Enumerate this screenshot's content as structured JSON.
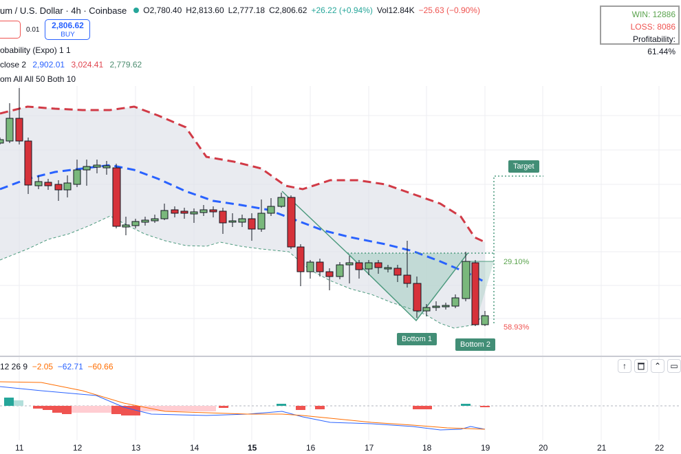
{
  "header": {
    "symbol": "um / U.S. Dollar · 4h · Coinbase",
    "open": "O2,780.40",
    "high": "H2,813.60",
    "low": "L2,777.18",
    "close": "C2,806.62",
    "change": "+26.22 (+0.94%)",
    "volume": "Vol12.84K",
    "vol_change": "−25.63 (−0.90%)"
  },
  "trade": {
    "spread": "0.01",
    "buy_price": "2,806.62",
    "buy_label": "BUY"
  },
  "indicators": {
    "line1": "obability (Expo) 1 1",
    "line2_name": "close 2",
    "line2_v1": "2,902.01",
    "line2_v2": "3,024.41",
    "line2_v3": "2,779.62",
    "line3": "om All All 50 Both 10"
  },
  "stats": {
    "win": "WIN: 12886",
    "loss": "LOSS: 8086",
    "profitability": "Profitability: 61.44%"
  },
  "annotations": {
    "target": "Target",
    "bottom1": "Bottom 1",
    "bottom2": "Bottom 2",
    "pct_top": "29.10%",
    "pct_bottom": "58.93%"
  },
  "macd": {
    "params": "12 26 9",
    "hist": "−2.05",
    "macd": "−62.71",
    "signal": "−60.66"
  },
  "toolbar": {
    "up_icon": "arrow-up-icon",
    "delete_icon": "trash-icon",
    "collapse_icon": "collapse-icon",
    "maximize_icon": "maximize-icon"
  },
  "xaxis": [
    "11",
    "12",
    "13",
    "14",
    "15",
    "16",
    "17",
    "18",
    "19",
    "20",
    "21",
    "22"
  ],
  "colors": {
    "up": "#26a69a",
    "down": "#ef5350",
    "bull_body": "#7ab87c",
    "bear_body": "#d6323a",
    "upper_band": "#d13a46",
    "mid_band": "#2962ff",
    "lower_band": "#4c9a7e"
  }
}
